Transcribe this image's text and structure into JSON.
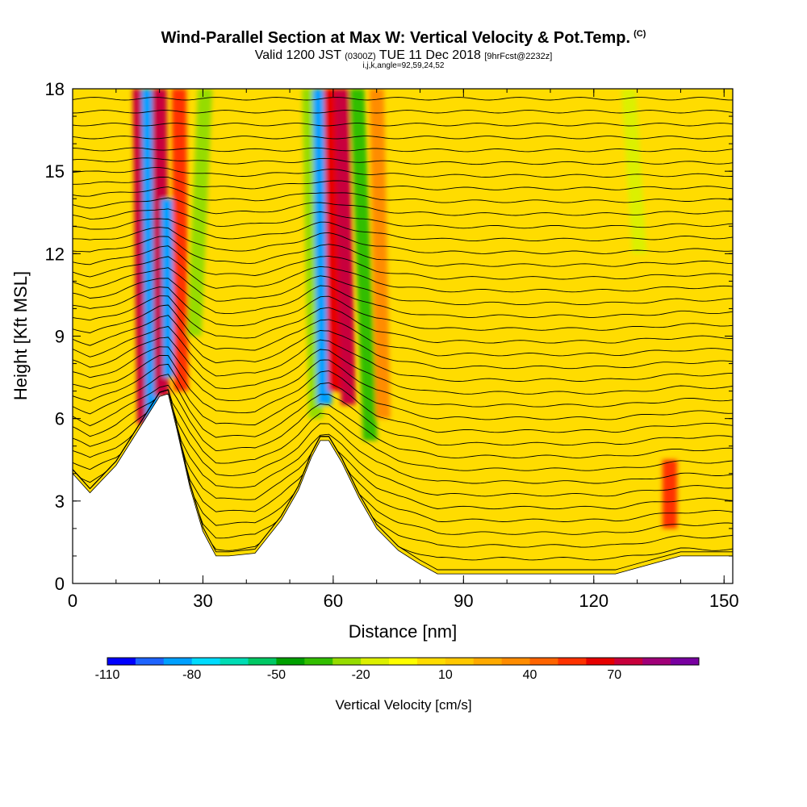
{
  "title": "Wind-Parallel Section at Max W: Vertical Velocity & Pot.Temp.",
  "copyright_mark": "(C)",
  "subtitle_valid": "Valid 1200 JST",
  "subtitle_utc": "(0300Z)",
  "subtitle_date": "TUE 11 Dec 2018",
  "subtitle_fcst": "[9hrFcst@2232z]",
  "subtitle_indices": "i,j,k,angle=92,59,24,52",
  "colorbar": {
    "title": "Vertical Velocity [cm/s]",
    "tick_labels": [
      "-110",
      "-80",
      "-50",
      "-20",
      "10",
      "40",
      "70"
    ],
    "colors": [
      "#0000ff",
      "#1e64ff",
      "#00a0ff",
      "#00dcff",
      "#00dcb4",
      "#00c864",
      "#00a000",
      "#32be00",
      "#96dc00",
      "#dcf000",
      "#ffff00",
      "#ffdc00",
      "#ffc800",
      "#ffaa00",
      "#ff8c00",
      "#ff6400",
      "#ff3200",
      "#e60000",
      "#c8003c",
      "#a00078",
      "#7800a0"
    ]
  },
  "chart_data": {
    "type": "heatmap",
    "xlabel": "Distance [nm]",
    "ylabel": "Height [Kft MSL]",
    "xlim": [
      0,
      152
    ],
    "ylim": [
      0,
      18
    ],
    "x_ticks": [
      "0",
      "30",
      "60",
      "90",
      "120",
      "150"
    ],
    "y_ticks": [
      "0",
      "3",
      "6",
      "9",
      "12",
      "15",
      "18"
    ],
    "terrain_profile": {
      "x": [
        0,
        4,
        10,
        16,
        20,
        22,
        24,
        27,
        30,
        33,
        36,
        42,
        48,
        52,
        55,
        57,
        59,
        62,
        66,
        70,
        75,
        80,
        84,
        88,
        95,
        110,
        125,
        133,
        140,
        152
      ],
      "height_kft": [
        4.0,
        3.3,
        4.3,
        5.8,
        6.8,
        6.9,
        5.6,
        3.5,
        1.9,
        1.0,
        1.0,
        1.1,
        2.3,
        3.4,
        4.6,
        5.2,
        5.2,
        4.4,
        3.1,
        2.0,
        1.2,
        0.7,
        0.35,
        0.35,
        0.35,
        0.35,
        0.35,
        0.7,
        1.0,
        1.0
      ]
    },
    "velocity_bands": [
      {
        "x_bottom": 16.5,
        "x_top": 15.5,
        "h_from_kft": 5.8,
        "h_to_kft": 18,
        "w_cms": 60
      },
      {
        "x_bottom": 18.5,
        "x_top": 17.5,
        "h_from_kft": 5.5,
        "h_to_kft": 18,
        "w_cms": -100
      },
      {
        "x_bottom": 20.5,
        "x_top": 20.0,
        "h_from_kft": 6.8,
        "h_to_kft": 18,
        "w_cms": 60
      },
      {
        "x_bottom": 22.5,
        "x_top": 22.0,
        "h_from_kft": 7.5,
        "h_to_kft": 14,
        "w_cms": -100
      },
      {
        "x_bottom": 25.0,
        "x_top": 24.5,
        "h_from_kft": 7.0,
        "h_to_kft": 18,
        "w_cms": 45
      },
      {
        "x_bottom": 28.0,
        "x_top": 30.5,
        "h_from_kft": 9.0,
        "h_to_kft": 18,
        "w_cms": -35
      },
      {
        "x_bottom": 56.0,
        "x_top": 54.5,
        "h_from_kft": 6.0,
        "h_to_kft": 18,
        "w_cms": -40
      },
      {
        "x_bottom": 58.0,
        "x_top": 57.0,
        "h_from_kft": 6.5,
        "h_to_kft": 18,
        "w_cms": -100
      },
      {
        "x_bottom": 60.5,
        "x_top": 59.5,
        "h_from_kft": 7.0,
        "h_to_kft": 18,
        "w_cms": 50
      },
      {
        "x_bottom": 63.5,
        "x_top": 62.0,
        "h_from_kft": 6.5,
        "h_to_kft": 18,
        "w_cms": 60
      },
      {
        "x_bottom": 68.5,
        "x_top": 65.5,
        "h_from_kft": 5.2,
        "h_to_kft": 18,
        "w_cms": -45
      },
      {
        "x_bottom": 71.5,
        "x_top": 70.0,
        "h_from_kft": 6.0,
        "h_to_kft": 18,
        "w_cms": 25
      },
      {
        "x_bottom": 130.5,
        "x_top": 128.0,
        "h_from_kft": 12.0,
        "h_to_kft": 18,
        "w_cms": -25
      },
      {
        "x_bottom": 137.5,
        "x_top": 137.5,
        "h_from_kft": 2.0,
        "h_to_kft": 4.5,
        "w_cms": 40
      }
    ]
  }
}
